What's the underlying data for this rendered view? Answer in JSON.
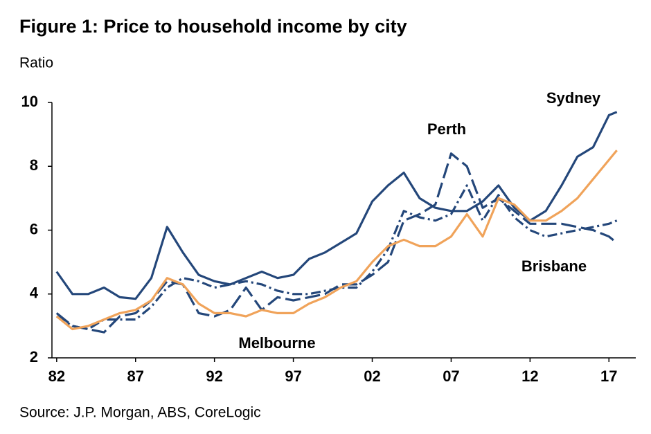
{
  "chart_data": {
    "type": "line",
    "title": "Figure 1: Price to household income by city",
    "y_label": "Ratio",
    "source": "Source: J.P. Morgan, ABS, CoreLogic",
    "x": [
      1982,
      1983,
      1984,
      1985,
      1986,
      1987,
      1988,
      1989,
      1990,
      1991,
      1992,
      1993,
      1994,
      1995,
      1996,
      1997,
      1998,
      1999,
      2000,
      2001,
      2002,
      2003,
      2004,
      2005,
      2006,
      2007,
      2008,
      2009,
      2010,
      2011,
      2012,
      2013,
      2014,
      2015,
      2016,
      2017,
      2017.5
    ],
    "series": [
      {
        "name": "Sydney",
        "color": "#24477a",
        "values": [
          4.7,
          4.0,
          4.0,
          4.2,
          3.9,
          3.85,
          4.5,
          6.1,
          5.3,
          4.6,
          4.4,
          4.3,
          4.5,
          4.7,
          4.5,
          4.6,
          5.1,
          5.3,
          5.6,
          5.9,
          6.9,
          7.4,
          7.8,
          7.0,
          6.7,
          6.6,
          6.6,
          6.9,
          7.4,
          6.7,
          6.3,
          6.6,
          7.4,
          8.3,
          8.6,
          9.6,
          9.7
        ]
      },
      {
        "name": "Perth",
        "color": "#24477a",
        "values": [
          3.4,
          3.0,
          2.9,
          2.8,
          3.3,
          3.4,
          3.8,
          4.4,
          4.3,
          3.4,
          3.3,
          3.5,
          4.2,
          3.5,
          3.9,
          3.8,
          3.9,
          4.0,
          4.3,
          4.3,
          4.6,
          5.0,
          6.3,
          6.5,
          6.8,
          8.4,
          8.0,
          6.7,
          7.0,
          6.6,
          6.2,
          6.2,
          6.2,
          6.1,
          6.0,
          5.8,
          5.6
        ]
      },
      {
        "name": "Brisbane",
        "color": "#24477a",
        "values": [
          3.3,
          3.0,
          2.9,
          3.2,
          3.2,
          3.2,
          3.6,
          4.2,
          4.5,
          4.4,
          4.2,
          4.3,
          4.4,
          4.3,
          4.1,
          4.0,
          4.0,
          4.1,
          4.2,
          4.2,
          4.7,
          5.4,
          6.6,
          6.4,
          6.3,
          6.5,
          7.4,
          6.3,
          7.1,
          6.4,
          6.0,
          5.8,
          5.9,
          6.0,
          6.1,
          6.2,
          6.3
        ]
      },
      {
        "name": "Melbourne",
        "color": "#f0a35a",
        "values": [
          3.3,
          2.9,
          3.0,
          3.2,
          3.4,
          3.5,
          3.8,
          4.5,
          4.3,
          3.7,
          3.4,
          3.4,
          3.3,
          3.5,
          3.4,
          3.4,
          3.7,
          3.9,
          4.2,
          4.4,
          5.0,
          5.5,
          5.7,
          5.5,
          5.5,
          5.8,
          6.5,
          5.8,
          7.0,
          6.8,
          6.3,
          6.3,
          6.6,
          7.0,
          7.6,
          8.2,
          8.5
        ]
      }
    ],
    "xlim": [
      1981.7,
      2018.7
    ],
    "xticks": [
      {
        "value": 1982,
        "label": "82"
      },
      {
        "value": 1987,
        "label": "87"
      },
      {
        "value": 1992,
        "label": "92"
      },
      {
        "value": 1997,
        "label": "97"
      },
      {
        "value": 2002,
        "label": "02"
      },
      {
        "value": 2007,
        "label": "07"
      },
      {
        "value": 2012,
        "label": "12"
      },
      {
        "value": 2017,
        "label": "17"
      }
    ],
    "ylim": [
      2,
      10
    ],
    "yticks": [
      2,
      4,
      6,
      8,
      10
    ]
  }
}
